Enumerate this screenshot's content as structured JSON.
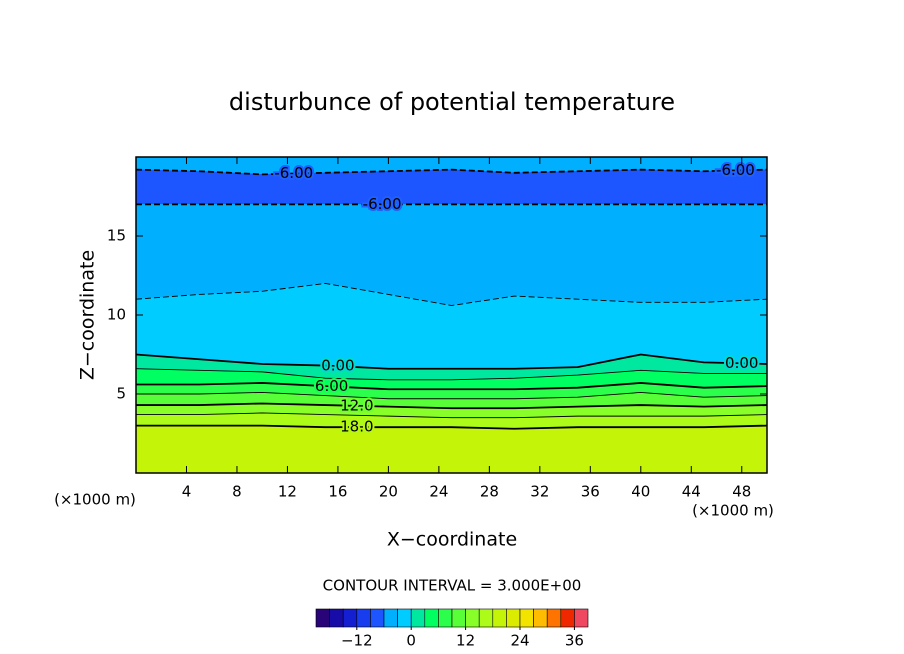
{
  "chart_data": {
    "type": "contour",
    "title": "disturbunce of potential temperature",
    "x_label": "X−coordinate",
    "y_label": "Z−coordinate",
    "x_unit": "(×1000 m)",
    "y_unit": "(×1000 m)",
    "xlim": [
      0,
      50
    ],
    "xticks": [
      4,
      8,
      12,
      16,
      20,
      24,
      28,
      32,
      36,
      40,
      44,
      48
    ],
    "ylim": [
      0,
      20
    ],
    "yticks": [
      5,
      10,
      15
    ],
    "x": [
      0,
      5,
      10,
      15,
      20,
      25,
      30,
      35,
      40,
      45,
      50
    ],
    "contours": [
      {
        "level": -6,
        "label": "-6.00",
        "label_x": [
          12.5,
          47.5
        ],
        "z": [
          19.2,
          19.1,
          18.9,
          19.0,
          19.1,
          19.2,
          19.0,
          19.1,
          19.2,
          19.1,
          19.2
        ]
      },
      {
        "level": -6,
        "label": "-6.00",
        "label_x": [
          19.5
        ],
        "z": [
          17.0,
          17.0,
          17.0,
          17.0,
          17.0,
          17.0,
          17.0,
          17.0,
          17.0,
          17.0,
          17.0
        ]
      },
      {
        "level": -3,
        "z": [
          11.0,
          11.3,
          11.5,
          12.0,
          11.3,
          10.6,
          11.2,
          11.0,
          10.8,
          10.8,
          11.0
        ]
      },
      {
        "level": 0,
        "label": "0.00",
        "label_x": [
          16,
          48
        ],
        "z": [
          7.5,
          7.2,
          6.9,
          6.8,
          6.6,
          6.6,
          6.6,
          6.7,
          7.5,
          7.0,
          6.9
        ]
      },
      {
        "level": 3,
        "z": [
          6.6,
          6.5,
          6.4,
          6.0,
          5.9,
          5.9,
          6.0,
          6.2,
          6.5,
          6.3,
          6.3
        ]
      },
      {
        "level": 6,
        "label": "6.00",
        "label_x": [
          15.5
        ],
        "z": [
          5.6,
          5.6,
          5.7,
          5.5,
          5.3,
          5.3,
          5.3,
          5.4,
          5.7,
          5.4,
          5.5
        ]
      },
      {
        "level": 9,
        "z": [
          5.0,
          5.0,
          5.1,
          4.9,
          4.7,
          4.7,
          4.7,
          4.8,
          5.1,
          4.8,
          4.9
        ]
      },
      {
        "level": 12,
        "label": "12.0",
        "label_x": [
          17.5
        ],
        "z": [
          4.3,
          4.3,
          4.4,
          4.3,
          4.2,
          4.1,
          4.1,
          4.2,
          4.3,
          4.2,
          4.3
        ]
      },
      {
        "level": 15,
        "z": [
          3.7,
          3.7,
          3.8,
          3.7,
          3.6,
          3.5,
          3.5,
          3.6,
          3.6,
          3.6,
          3.7
        ]
      },
      {
        "level": 18,
        "label": "18.0",
        "label_x": [
          17.5
        ],
        "z": [
          3.0,
          3.0,
          3.0,
          2.9,
          2.9,
          2.9,
          2.8,
          2.9,
          2.9,
          2.9,
          3.0
        ]
      }
    ],
    "band_values": [
      -4.5,
      -7.5,
      -4.5,
      -1.5,
      1.5,
      4.5,
      7.5,
      10.5,
      13.5,
      16.5,
      19.5
    ],
    "contour_interval": {
      "value": 3,
      "label": "CONTOUR INTERVAL = 3.000E+00"
    },
    "cbar_lim": [
      -21,
      39
    ],
    "cbar_ticks": [
      {
        "value": -12,
        "label": "−12"
      },
      0,
      12,
      24,
      36
    ]
  }
}
